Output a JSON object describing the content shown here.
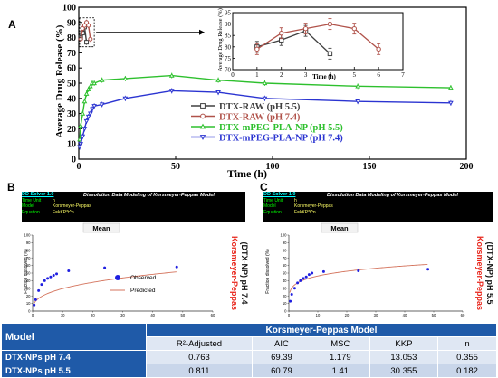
{
  "panel_labels": {
    "a": "A",
    "b": "B",
    "c": "C"
  },
  "chart_data": [
    {
      "type": "line",
      "xlabel": "Time (h)",
      "ylabel": "Average Drug Release (%)",
      "xlim": [
        0,
        200
      ],
      "ylim": [
        0,
        100
      ],
      "xticks": [
        "0",
        "50",
        "100",
        "150",
        "200"
      ],
      "yticks": [
        "0",
        "10",
        "20",
        "30",
        "40",
        "50",
        "60",
        "70",
        "80",
        "90",
        "100"
      ],
      "grid": false,
      "legend_position": "center-right",
      "series": [
        {
          "name": "DTX-RAW (pH 5.5)",
          "color": "#404040",
          "marker": "square",
          "x": [
            1,
            2,
            3,
            4
          ],
          "y": [
            80,
            83,
            87,
            77
          ]
        },
        {
          "name": "DTX-RAW (pH 7.4)",
          "color": "#b0524a",
          "marker": "circle",
          "x": [
            1,
            2,
            3,
            4,
            5,
            6
          ],
          "y": [
            79,
            86,
            88,
            90,
            88,
            79
          ]
        },
        {
          "name": "DTX-mPEG-PLA-NP (pH 5.5)",
          "color": "#2ec02e",
          "marker": "triangle-up",
          "x": [
            0.5,
            1,
            2,
            3,
            4,
            5,
            6,
            7,
            8,
            12,
            24,
            48,
            72,
            96,
            144,
            192
          ],
          "y": [
            13,
            22,
            30,
            38,
            43,
            46,
            48,
            50,
            50,
            52,
            53,
            55,
            52,
            50,
            48,
            47
          ]
        },
        {
          "name": "DTX-mPEG-PLA-NP (pH 7.4)",
          "color": "#2b34d1",
          "marker": "triangle-down",
          "x": [
            0.5,
            1,
            2,
            3,
            4,
            5,
            6,
            7,
            8,
            12,
            24,
            48,
            72,
            96,
            144,
            192
          ],
          "y": [
            8,
            10,
            15,
            20,
            25,
            28,
            30,
            33,
            35,
            36,
            40,
            45,
            44,
            40,
            38,
            37
          ]
        }
      ],
      "inset": {
        "type": "line",
        "xlabel": "Time (h)",
        "ylabel": "Average Drug Release (%)",
        "xlim": [
          0,
          7
        ],
        "ylim": [
          70,
          95
        ],
        "xticks": [
          "0",
          "1",
          "2",
          "3",
          "4",
          "5",
          "6",
          "7"
        ],
        "yticks": [
          "70",
          "75",
          "80",
          "85",
          "90",
          "95"
        ],
        "series": [
          {
            "color": "#404040",
            "marker": "square",
            "x": [
              1,
              2,
              3,
              4
            ],
            "y": [
              80,
              83,
              87,
              77
            ]
          },
          {
            "color": "#b0524a",
            "marker": "circle",
            "x": [
              1,
              2,
              3,
              4,
              5,
              6
            ],
            "y": [
              79,
              86,
              88,
              90,
              88,
              79
            ]
          }
        ]
      }
    },
    {
      "type": "scatter",
      "header": {
        "app": "DD Solver 1.0",
        "title": "Dissolution Data Modeling of Korsmeyer-Peppas Model",
        "rows": [
          [
            "Time Unit",
            "h"
          ],
          [
            "Model",
            "Korsmeyer-Peppas"
          ],
          [
            "Equation",
            "F=kKP*t^n"
          ]
        ]
      },
      "title": "Mean",
      "xlabel": "Time",
      "ylabel": "Fraction dissolved (%)",
      "xlim": [
        0,
        60
      ],
      "ylim": [
        0,
        100
      ],
      "xticks": [
        "0",
        "10",
        "20",
        "30",
        "40",
        "50",
        "60"
      ],
      "yticks": [
        "0",
        "10",
        "20",
        "30",
        "40",
        "50",
        "60",
        "70",
        "80",
        "90",
        "100"
      ],
      "legend_position": "center-right",
      "side_label_main": "Korsmeyer-Peppas",
      "side_label_sub": "(DTX-NP) pH 7.4",
      "series": [
        {
          "name": "Observed",
          "color": "#1f1fe0",
          "x": [
            0.5,
            1,
            2,
            3,
            4,
            5,
            6,
            7,
            8,
            12,
            24,
            48
          ],
          "y": [
            8,
            15,
            27,
            35,
            40,
            43,
            45,
            47,
            49,
            53,
            57,
            58
          ]
        },
        {
          "name": "Predicted",
          "color": "#d4735c",
          "fit": {
            "k": 13.053,
            "n": 0.355
          }
        }
      ]
    },
    {
      "type": "scatter",
      "header": {
        "app": "DD Solver 1.0",
        "title": "Dissolution Data Modeling of Korsmeyer-Peppas Model",
        "rows": [
          [
            "Time Unit",
            "h"
          ],
          [
            "Model",
            "Korsmeyer-Peppas"
          ],
          [
            "Equation",
            "F=kKP*t^n"
          ]
        ]
      },
      "title": "Mean",
      "xlabel": "Time",
      "ylabel": "Fraction dissolved (%)",
      "xlim": [
        0,
        60
      ],
      "ylim": [
        0,
        100
      ],
      "xticks": [
        "0",
        "10",
        "20",
        "30",
        "40",
        "50",
        "60"
      ],
      "yticks": [
        "0",
        "10",
        "20",
        "30",
        "40",
        "50",
        "60",
        "70",
        "80",
        "90",
        "100"
      ],
      "side_label_main": "Korsmeyer-Peppas",
      "side_label_sub": "(DTX-NP) pH 5.5",
      "series": [
        {
          "name": "Observed",
          "color": "#1f1fe0",
          "x": [
            0.5,
            1,
            2,
            3,
            4,
            5,
            6,
            7,
            8,
            12,
            24,
            48
          ],
          "y": [
            13,
            22,
            30,
            37,
            40,
            43,
            45,
            48,
            50,
            52,
            53,
            55
          ]
        },
        {
          "name": "Predicted",
          "color": "#d4735c",
          "fit": {
            "k": 30.355,
            "n": 0.182
          }
        }
      ]
    },
    {
      "type": "table",
      "header_left": "Model",
      "title": "Korsmeyer-Peppas Model",
      "columns": [
        "R²-Adjusted",
        "AIC",
        "MSC",
        "KKP",
        "n"
      ],
      "rows": [
        {
          "label": "DTX-NPs pH 7.4",
          "values": [
            "0.763",
            "69.39",
            "1.179",
            "13.053",
            "0.355"
          ]
        },
        {
          "label": "DTX-NPs pH 5.5",
          "values": [
            "0.811",
            "60.79",
            "1.41",
            "30.355",
            "0.182"
          ]
        }
      ]
    }
  ]
}
